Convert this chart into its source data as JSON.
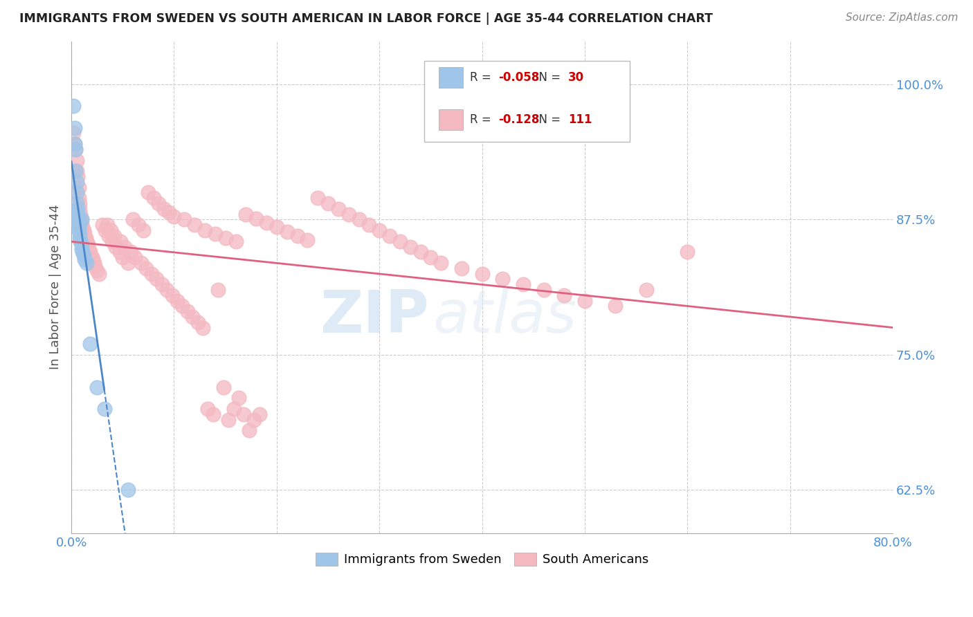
{
  "title": "IMMIGRANTS FROM SWEDEN VS SOUTH AMERICAN IN LABOR FORCE | AGE 35-44 CORRELATION CHART",
  "source": "Source: ZipAtlas.com",
  "ylabel": "In Labor Force | Age 35-44",
  "xlim": [
    0.0,
    0.8
  ],
  "ylim": [
    0.585,
    1.04
  ],
  "ytick_positions": [
    0.625,
    0.75,
    0.875,
    1.0
  ],
  "ytick_labels": [
    "62.5%",
    "75.0%",
    "87.5%",
    "100.0%"
  ],
  "sweden_color": "#9fc5e8",
  "south_america_color": "#f4b8c1",
  "sweden_line_color": "#4a86c8",
  "south_america_line_color": "#e06080",
  "sweden_R": -0.058,
  "sweden_N": 30,
  "south_america_R": -0.128,
  "south_america_N": 111,
  "legend_label_sweden": "Immigrants from Sweden",
  "legend_label_south_america": "South Americans",
  "watermark_zip": "ZIP",
  "watermark_atlas": "atlas",
  "sw_x": [
    0.002,
    0.003,
    0.003,
    0.004,
    0.004,
    0.005,
    0.005,
    0.005,
    0.006,
    0.006,
    0.006,
    0.007,
    0.007,
    0.008,
    0.008,
    0.009,
    0.01,
    0.01,
    0.011,
    0.012,
    0.013,
    0.015,
    0.018,
    0.025,
    0.032,
    0.055,
    0.01,
    0.008,
    0.007,
    0.006
  ],
  "sw_y": [
    0.98,
    0.96,
    0.945,
    0.94,
    0.92,
    0.91,
    0.9,
    0.89,
    0.885,
    0.88,
    0.875,
    0.87,
    0.865,
    0.862,
    0.858,
    0.855,
    0.852,
    0.848,
    0.845,
    0.842,
    0.838,
    0.835,
    0.76,
    0.72,
    0.7,
    0.625,
    0.875,
    0.87,
    0.875,
    0.872
  ],
  "sa_x": [
    0.002,
    0.003,
    0.004,
    0.005,
    0.005,
    0.006,
    0.007,
    0.007,
    0.008,
    0.008,
    0.009,
    0.01,
    0.01,
    0.011,
    0.012,
    0.013,
    0.014,
    0.015,
    0.016,
    0.017,
    0.018,
    0.02,
    0.021,
    0.022,
    0.023,
    0.025,
    0.027,
    0.03,
    0.033,
    0.036,
    0.04,
    0.043,
    0.047,
    0.05,
    0.055,
    0.06,
    0.065,
    0.07,
    0.075,
    0.08,
    0.085,
    0.09,
    0.095,
    0.1,
    0.11,
    0.12,
    0.13,
    0.14,
    0.15,
    0.16,
    0.17,
    0.18,
    0.19,
    0.2,
    0.21,
    0.22,
    0.23,
    0.24,
    0.25,
    0.26,
    0.27,
    0.28,
    0.29,
    0.3,
    0.31,
    0.32,
    0.33,
    0.34,
    0.35,
    0.36,
    0.38,
    0.4,
    0.42,
    0.44,
    0.46,
    0.48,
    0.5,
    0.53,
    0.56,
    0.6,
    0.035,
    0.038,
    0.042,
    0.048,
    0.052,
    0.058,
    0.062,
    0.068,
    0.073,
    0.078,
    0.083,
    0.088,
    0.093,
    0.098,
    0.103,
    0.108,
    0.113,
    0.118,
    0.123,
    0.128,
    0.133,
    0.138,
    0.143,
    0.148,
    0.153,
    0.158,
    0.163,
    0.168,
    0.173,
    0.178,
    0.183
  ],
  "sa_y": [
    0.955,
    0.945,
    0.94,
    0.93,
    0.92,
    0.915,
    0.905,
    0.895,
    0.89,
    0.885,
    0.88,
    0.875,
    0.87,
    0.868,
    0.865,
    0.862,
    0.858,
    0.855,
    0.852,
    0.848,
    0.845,
    0.84,
    0.838,
    0.835,
    0.832,
    0.828,
    0.825,
    0.87,
    0.865,
    0.86,
    0.855,
    0.85,
    0.845,
    0.84,
    0.835,
    0.875,
    0.87,
    0.865,
    0.9,
    0.895,
    0.89,
    0.885,
    0.882,
    0.878,
    0.875,
    0.87,
    0.865,
    0.862,
    0.858,
    0.855,
    0.88,
    0.876,
    0.872,
    0.868,
    0.864,
    0.86,
    0.856,
    0.895,
    0.89,
    0.885,
    0.88,
    0.875,
    0.87,
    0.865,
    0.86,
    0.855,
    0.85,
    0.845,
    0.84,
    0.835,
    0.83,
    0.825,
    0.82,
    0.815,
    0.81,
    0.805,
    0.8,
    0.795,
    0.81,
    0.845,
    0.87,
    0.865,
    0.86,
    0.855,
    0.85,
    0.845,
    0.84,
    0.835,
    0.83,
    0.825,
    0.82,
    0.815,
    0.81,
    0.805,
    0.8,
    0.795,
    0.79,
    0.785,
    0.78,
    0.775,
    0.7,
    0.695,
    0.81,
    0.72,
    0.69,
    0.7,
    0.71,
    0.695,
    0.68,
    0.69,
    0.695
  ]
}
